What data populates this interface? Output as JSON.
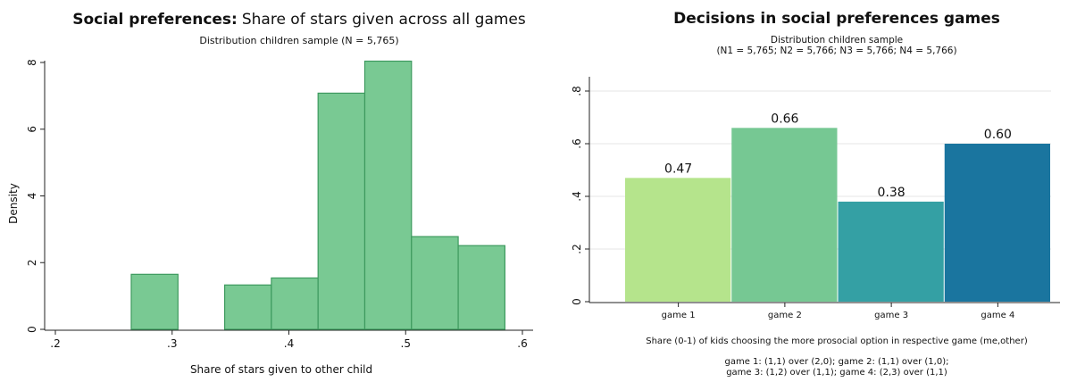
{
  "chart_data": [
    {
      "type": "bar",
      "title_bold": "Social preferences:",
      "title_rest": "Share of stars given across all games",
      "subtitle": "Distribution children sample (N = 5,765)",
      "xlabel": "Share of stars given to other child",
      "ylabel": "Density",
      "xlim": [
        0.2,
        0.6
      ],
      "ylim": [
        0,
        8
      ],
      "xticks": [
        0.2,
        0.3,
        0.4,
        0.5,
        0.6
      ],
      "xtick_labels": [
        ".2",
        ".3",
        ".4",
        ".5",
        ".6"
      ],
      "yticks": [
        0,
        2,
        4,
        6,
        8
      ],
      "ytick_labels": [
        "0",
        "2",
        "4",
        "6",
        "8"
      ],
      "bins": [
        {
          "x0": 0.265,
          "x1": 0.305,
          "density": 1.65
        },
        {
          "x0": 0.345,
          "x1": 0.385,
          "density": 1.33
        },
        {
          "x0": 0.385,
          "x1": 0.425,
          "density": 1.54
        },
        {
          "x0": 0.425,
          "x1": 0.465,
          "density": 7.08
        },
        {
          "x0": 0.465,
          "x1": 0.505,
          "density": 8.04
        },
        {
          "x0": 0.505,
          "x1": 0.545,
          "density": 2.78
        },
        {
          "x0": 0.545,
          "x1": 0.585,
          "density": 2.51
        }
      ],
      "bar_color": "#79c993",
      "bar_edge": "#3e9a5f"
    },
    {
      "type": "bar",
      "title": "Decisions in social preferences games",
      "subtitle_line1": "Distribution children sample",
      "subtitle_line2": "(N1 = 5,765; N2 = 5,766; N3 = 5,766; N4 = 5,766)",
      "xlabel": "Share (0-1) of kids choosing the more prosocial option in respective game (me,other)",
      "note_line1": "game 1: (1,1) over (2,0); game 2: (1,1) over (1,0);",
      "note_line2": "game 3: (1,2) over (1,1); game 4: (2,3) over (1,1)",
      "ylim": [
        0,
        0.8
      ],
      "yticks": [
        0,
        0.2,
        0.4,
        0.6,
        0.8
      ],
      "ytick_labels": [
        "0",
        ".2",
        ".4",
        ".6",
        ".8"
      ],
      "grid": true,
      "categories": [
        "game 1",
        "game 2",
        "game 3",
        "game 4"
      ],
      "values": [
        0.47,
        0.66,
        0.38,
        0.6
      ],
      "value_labels": [
        "0.47",
        "0.66",
        "0.38",
        "0.60"
      ],
      "colors": [
        "#b5e48c",
        "#76c893",
        "#34a0a4",
        "#1a759f"
      ]
    }
  ]
}
